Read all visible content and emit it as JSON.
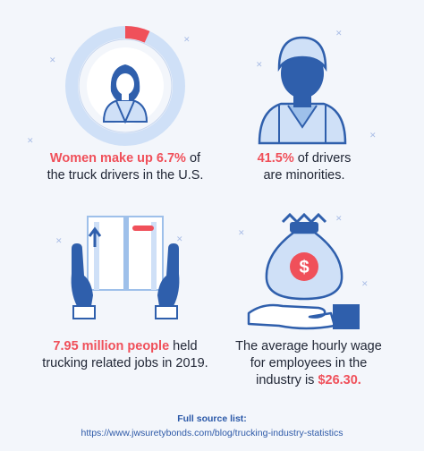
{
  "stats": [
    {
      "id": "women",
      "lines": [
        [
          {
            "text": "Women make up 6.7%",
            "hl": true
          },
          {
            "text": " of",
            "hl": false
          }
        ],
        [
          {
            "text": "the truck drivers in the U.S.",
            "hl": false
          }
        ]
      ],
      "percent": 6.7,
      "icon": "woman-driver-donut-icon"
    },
    {
      "id": "minorities",
      "lines": [
        [
          {
            "text": "41.5%",
            "hl": true
          },
          {
            "text": " of drivers",
            "hl": false
          }
        ],
        [
          {
            "text": "are minorities.",
            "hl": false
          }
        ]
      ],
      "icon": "driver-bust-icon"
    },
    {
      "id": "jobs",
      "lines": [
        [
          {
            "text": "7.95 million people",
            "hl": true
          },
          {
            "text": " held",
            "hl": false
          }
        ],
        [
          {
            "text": "trucking related jobs in 2019.",
            "hl": false
          }
        ]
      ],
      "icon": "hands-holding-book-icon"
    },
    {
      "id": "wage",
      "lines": [
        [
          {
            "text": "The average hourly wage",
            "hl": false
          }
        ],
        [
          {
            "text": "for employees in the",
            "hl": false
          }
        ],
        [
          {
            "text": "industry is ",
            "hl": false
          },
          {
            "text": "$26.30.",
            "hl": true
          }
        ]
      ],
      "icon": "hand-money-bag-icon"
    }
  ],
  "footer": {
    "heading": "Full source list:",
    "url": "https://www.jwsuretybonds.com/blog/trucking-industry-statistics"
  },
  "colors": {
    "accent": "#f0505a",
    "dark_blue": "#2f5fac",
    "light_blue": "#cfe0f7",
    "mid_blue": "#9ec0ea",
    "background": "#f3f6fb"
  }
}
